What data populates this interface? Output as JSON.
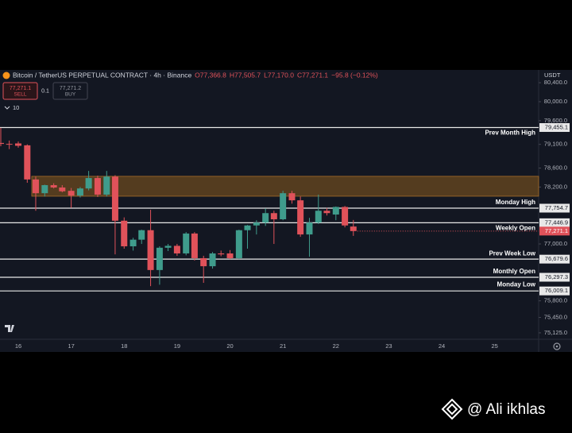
{
  "chart_data": {
    "type": "candlestick",
    "title": "Bitcoin / TetherUS PERPETUAL CONTRACT · 4h · Binance",
    "legend_ohlc": [
      "O77,366.8",
      "H77,505.7",
      "L77,170.0",
      "C77,271.1",
      "−95.8 (−0.12%)"
    ],
    "currency": "USDT",
    "sell": {
      "price": "77,271.1",
      "label": "SELL"
    },
    "quantity": "0.1",
    "buy": {
      "price": "77,271.2",
      "label": "BUY"
    },
    "indicator_count": "10",
    "watermark": "@ Ali ikhlas",
    "up_color": "#3f9c8c",
    "down_color": "#e0525a",
    "x": [
      15.67,
      15.83,
      16,
      16.17,
      16.33,
      16.5,
      16.67,
      16.83,
      17,
      17.17,
      17.33,
      17.5,
      17.67,
      17.83,
      18,
      18.17,
      18.33,
      18.5,
      18.67,
      18.83,
      19,
      19.17,
      19.33,
      19.5,
      19.67,
      19.83,
      20,
      20.17,
      20.33,
      20.5,
      20.67,
      20.83,
      21,
      21.17,
      21.33,
      21.5,
      21.67,
      21.83,
      22,
      22.17,
      22.33
    ],
    "open": [
      79130,
      79110,
      79120,
      79080,
      78360,
      78070,
      78240,
      78190,
      78120,
      78020,
      78170,
      78390,
      78040,
      78420,
      77490,
      76950,
      77090,
      77290,
      76450,
      76920,
      76960,
      76800,
      77220,
      76700,
      76530,
      76800,
      76800,
      76700,
      77290,
      77390,
      77450,
      77650,
      77520,
      78070,
      77920,
      77200,
      77450,
      77700,
      77620,
      77780,
      77366.8
    ],
    "high": [
      79450,
      79180,
      79160,
      79100,
      78420,
      78250,
      78280,
      78240,
      78180,
      78200,
      78540,
      78440,
      78540,
      78450,
      77560,
      77130,
      77300,
      77720,
      76950,
      77000,
      77000,
      77250,
      77250,
      76750,
      76830,
      76860,
      76870,
      77300,
      77400,
      77500,
      77750,
      77700,
      78120,
      78120,
      78000,
      77550,
      78040,
      77760,
      77790,
      77800,
      77505.7
    ],
    "low": [
      79060,
      79000,
      79030,
      78290,
      77700,
      78000,
      78170,
      78090,
      77760,
      77980,
      78130,
      77990,
      78000,
      76780,
      76900,
      76860,
      77000,
      76110,
      76140,
      76850,
      76750,
      76760,
      76650,
      76180,
      76480,
      76740,
      76680,
      76680,
      76900,
      77200,
      77380,
      77000,
      77500,
      77850,
      77150,
      76730,
      77420,
      77600,
      77500,
      77350,
      77170
    ],
    "close": [
      79110,
      79100,
      79070,
      78360,
      78070,
      78240,
      78190,
      78110,
      78020,
      78170,
      78390,
      78040,
      78420,
      77490,
      76950,
      77090,
      77290,
      76450,
      76920,
      76960,
      76800,
      77220,
      76700,
      76530,
      76800,
      76780,
      76700,
      77290,
      77390,
      77450,
      77650,
      77520,
      78070,
      77920,
      77200,
      77450,
      77700,
      77650,
      77780,
      77390,
      77271.1
    ],
    "xlim": [
      15.655,
      25.83
    ],
    "xticks": [
      16,
      17,
      18,
      19,
      20,
      21,
      22,
      23,
      24,
      25
    ],
    "ylim": [
      74990,
      80670
    ],
    "yticks": [
      {
        "value": 80400,
        "label": "80,400.0"
      },
      {
        "value": 80000,
        "label": "80,000.0"
      },
      {
        "value": 79600,
        "label": "79,600.0"
      },
      {
        "value": 79100,
        "label": "79,100.0"
      },
      {
        "value": 78600,
        "label": "78,600.0"
      },
      {
        "value": 78200,
        "label": "78,200.0"
      },
      {
        "value": 77000,
        "label": "77,000.0"
      },
      {
        "value": 75800,
        "label": "75,800.0"
      },
      {
        "value": 75450,
        "label": "75,450.0"
      },
      {
        "value": 75125,
        "label": "75,125.0"
      }
    ],
    "zone": [
      78007,
      78426
    ],
    "zone_color": "#6b4a1f",
    "levels": [
      {
        "name": "Prev Month High",
        "value": 79455.1,
        "label": "79,455.1"
      },
      {
        "name": "Monday High",
        "value": 77754.7,
        "label": "77,754.7"
      },
      {
        "name": "Weekly Open",
        "value": 77446.9,
        "label": "77,446.9"
      },
      {
        "name": "Prev Week Low",
        "value": 76679.6,
        "label": "76,679.6"
      },
      {
        "name": "Monthly Open",
        "value": 76297.3,
        "label": "76,297.3"
      },
      {
        "name": "Monday Low",
        "value": 76009.1,
        "label": "76,009.1"
      }
    ],
    "last_price": {
      "value": 77271.1,
      "label": "77,271.1"
    }
  }
}
